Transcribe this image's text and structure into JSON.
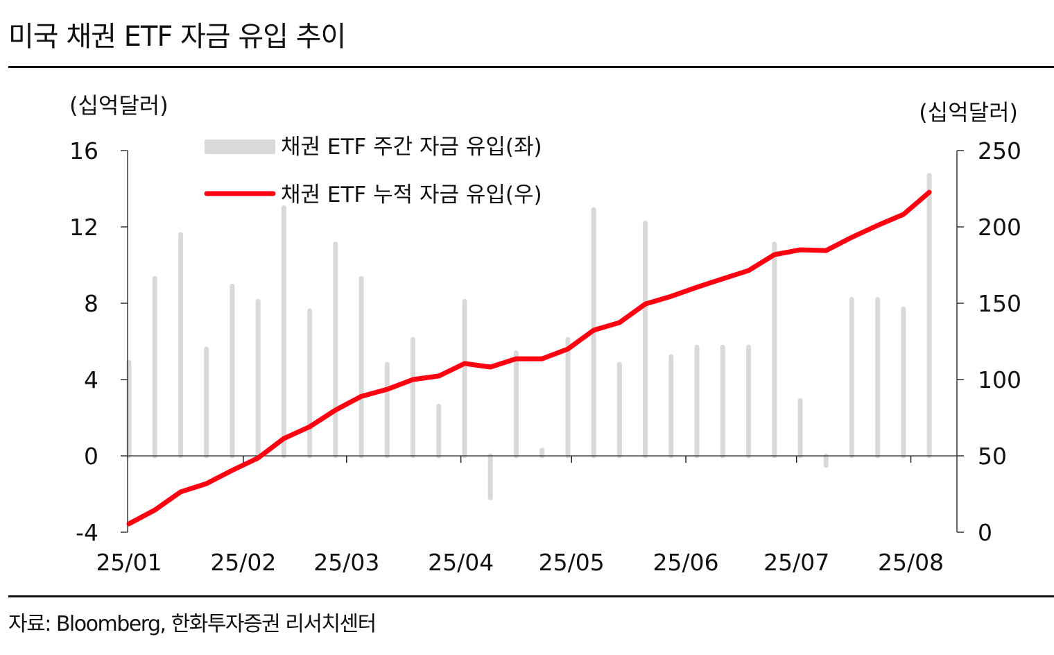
{
  "title": "미국 채권 ETF 자금 유입 추이",
  "source": "자료: Bloomberg, 한화투자증권 리서치센터",
  "chart_data": {
    "type": "bar+line",
    "x": [
      "2025-01-01",
      "2025-01-08",
      "2025-01-15",
      "2025-01-22",
      "2025-01-29",
      "2025-02-05",
      "2025-02-12",
      "2025-02-19",
      "2025-02-26",
      "2025-03-05",
      "2025-03-12",
      "2025-03-19",
      "2025-03-26",
      "2025-04-02",
      "2025-04-09",
      "2025-04-16",
      "2025-04-23",
      "2025-04-30",
      "2025-05-07",
      "2025-05-14",
      "2025-05-21",
      "2025-05-28",
      "2025-06-04",
      "2025-06-11",
      "2025-06-18",
      "2025-06-25",
      "2025-07-02",
      "2025-07-09",
      "2025-07-16",
      "2025-07-23",
      "2025-07-30",
      "2025-08-06"
    ],
    "x_ticks": [
      "2025-01-01",
      "2025-02-01",
      "2025-03-01",
      "2025-04-01",
      "2025-05-01",
      "2025-06-01",
      "2025-07-01",
      "2025-08-01"
    ],
    "x_tick_labels": [
      "25/01",
      "25/02",
      "25/03",
      "25/04",
      "25/05",
      "25/06",
      "25/07",
      "25/08"
    ],
    "series": [
      {
        "name": "채권 ETF 주간 자금 유입(좌)",
        "type": "bar",
        "axis": "left",
        "color": "#d9d9d9",
        "values": [
          4.9,
          9.3,
          11.6,
          5.6,
          8.9,
          8.1,
          13.0,
          7.6,
          11.1,
          9.3,
          4.8,
          6.1,
          2.6,
          8.1,
          -2.2,
          5.4,
          0.3,
          6.1,
          12.9,
          4.8,
          12.2,
          5.2,
          5.7,
          5.7,
          5.7,
          11.1,
          2.9,
          -0.5,
          8.2,
          8.2,
          7.7,
          14.7
        ]
      },
      {
        "name": "채권 ETF 누적 자금 유입(우)",
        "type": "line",
        "axis": "right",
        "color": "#ff0010",
        "values": [
          5.5,
          14.5,
          26.4,
          31.8,
          40.5,
          48.6,
          61.4,
          69.1,
          80.0,
          89.0,
          93.6,
          100.0,
          102.3,
          110.5,
          108.2,
          113.6,
          113.6,
          120.0,
          132.3,
          137.3,
          149.5,
          154.5,
          160.5,
          166.0,
          171.4,
          181.8,
          185.0,
          184.5,
          193.2,
          201.0,
          208.2,
          222.7
        ]
      }
    ],
    "y_left": {
      "label": "(십억달러)",
      "range": [
        -4,
        16
      ],
      "ticks": [
        "-4",
        "0",
        "4",
        "8",
        "12",
        "16"
      ]
    },
    "y_right": {
      "label": "(십억달러)",
      "range": [
        0,
        250
      ],
      "ticks": [
        "0",
        "50",
        "100",
        "150",
        "200",
        "250"
      ]
    },
    "grid": false,
    "legend": "top-left"
  }
}
